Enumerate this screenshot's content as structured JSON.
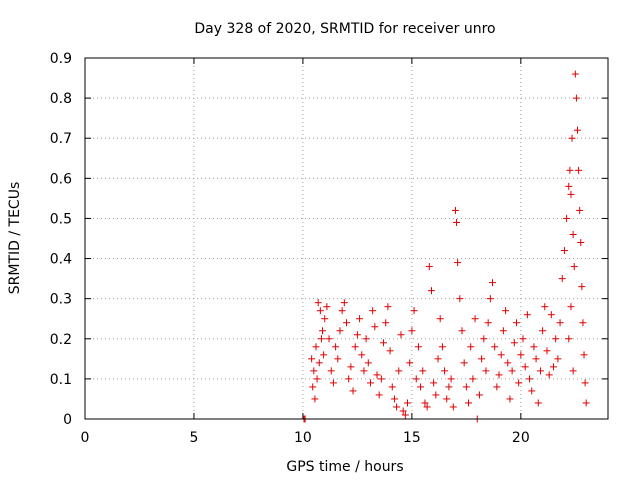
{
  "chart_data": {
    "type": "scatter",
    "title": "Day 328 of 2020, SRMTID for receiver unro",
    "xlabel": "GPS time / hours",
    "ylabel": "SRMTID / TECUs",
    "xlim": [
      0,
      24
    ],
    "ylim": [
      0,
      0.9
    ],
    "xticks": [
      0,
      5,
      10,
      15,
      20
    ],
    "yticks": [
      0,
      0.1,
      0.2,
      0.3,
      0.4,
      0.5,
      0.6,
      0.7,
      0.8,
      0.9
    ],
    "grid": true,
    "marker": "+",
    "color": "#e00000",
    "series": [
      {
        "name": "SRMTID",
        "points": [
          [
            10.05,
            0.0
          ],
          [
            10.1,
            0.0
          ],
          [
            18.0,
            0.0
          ],
          [
            10.4,
            0.15
          ],
          [
            10.5,
            0.12
          ],
          [
            10.6,
            0.18
          ],
          [
            10.7,
            0.29
          ],
          [
            10.8,
            0.27
          ],
          [
            10.9,
            0.22
          ],
          [
            10.45,
            0.08
          ],
          [
            10.55,
            0.05
          ],
          [
            10.65,
            0.1
          ],
          [
            10.75,
            0.14
          ],
          [
            10.85,
            0.2
          ],
          [
            10.95,
            0.16
          ],
          [
            11.0,
            0.25
          ],
          [
            11.1,
            0.28
          ],
          [
            11.2,
            0.2
          ],
          [
            11.3,
            0.12
          ],
          [
            11.4,
            0.09
          ],
          [
            11.5,
            0.18
          ],
          [
            11.6,
            0.15
          ],
          [
            11.7,
            0.22
          ],
          [
            11.8,
            0.27
          ],
          [
            11.9,
            0.29
          ],
          [
            12.0,
            0.24
          ],
          [
            12.1,
            0.1
          ],
          [
            12.2,
            0.13
          ],
          [
            12.3,
            0.07
          ],
          [
            12.4,
            0.18
          ],
          [
            12.5,
            0.21
          ],
          [
            12.6,
            0.25
          ],
          [
            12.7,
            0.16
          ],
          [
            12.8,
            0.12
          ],
          [
            12.9,
            0.2
          ],
          [
            13.0,
            0.14
          ],
          [
            13.1,
            0.09
          ],
          [
            13.2,
            0.27
          ],
          [
            13.3,
            0.23
          ],
          [
            13.4,
            0.11
          ],
          [
            13.5,
            0.06
          ],
          [
            13.6,
            0.1
          ],
          [
            13.7,
            0.19
          ],
          [
            13.8,
            0.24
          ],
          [
            13.9,
            0.28
          ],
          [
            14.0,
            0.17
          ],
          [
            14.1,
            0.08
          ],
          [
            14.2,
            0.05
          ],
          [
            14.3,
            0.03
          ],
          [
            14.4,
            0.12
          ],
          [
            14.5,
            0.21
          ],
          [
            14.6,
            0.02
          ],
          [
            14.7,
            0.01
          ],
          [
            14.8,
            0.04
          ],
          [
            14.9,
            0.14
          ],
          [
            15.0,
            0.22
          ],
          [
            15.1,
            0.27
          ],
          [
            15.2,
            0.1
          ],
          [
            15.3,
            0.18
          ],
          [
            15.4,
            0.08
          ],
          [
            15.5,
            0.12
          ],
          [
            15.6,
            0.04
          ],
          [
            15.7,
            0.03
          ],
          [
            15.8,
            0.38
          ],
          [
            15.9,
            0.32
          ],
          [
            16.0,
            0.09
          ],
          [
            16.1,
            0.06
          ],
          [
            16.2,
            0.15
          ],
          [
            16.3,
            0.25
          ],
          [
            16.4,
            0.18
          ],
          [
            16.5,
            0.12
          ],
          [
            16.6,
            0.05
          ],
          [
            16.7,
            0.08
          ],
          [
            16.8,
            0.1
          ],
          [
            16.9,
            0.03
          ],
          [
            17.0,
            0.52
          ],
          [
            17.05,
            0.49
          ],
          [
            17.1,
            0.39
          ],
          [
            17.2,
            0.3
          ],
          [
            17.3,
            0.22
          ],
          [
            17.4,
            0.14
          ],
          [
            17.5,
            0.08
          ],
          [
            17.6,
            0.04
          ],
          [
            17.7,
            0.18
          ],
          [
            17.8,
            0.1
          ],
          [
            17.9,
            0.25
          ],
          [
            18.1,
            0.06
          ],
          [
            18.2,
            0.15
          ],
          [
            18.3,
            0.2
          ],
          [
            18.4,
            0.12
          ],
          [
            18.5,
            0.24
          ],
          [
            18.6,
            0.3
          ],
          [
            18.7,
            0.34
          ],
          [
            18.8,
            0.18
          ],
          [
            18.9,
            0.08
          ],
          [
            19.0,
            0.11
          ],
          [
            19.1,
            0.16
          ],
          [
            19.2,
            0.22
          ],
          [
            19.3,
            0.27
          ],
          [
            19.4,
            0.14
          ],
          [
            19.5,
            0.05
          ],
          [
            19.6,
            0.12
          ],
          [
            19.7,
            0.19
          ],
          [
            19.8,
            0.24
          ],
          [
            19.9,
            0.09
          ],
          [
            20.0,
            0.16
          ],
          [
            20.1,
            0.2
          ],
          [
            20.2,
            0.13
          ],
          [
            20.3,
            0.26
          ],
          [
            20.4,
            0.1
          ],
          [
            20.5,
            0.07
          ],
          [
            20.6,
            0.18
          ],
          [
            20.7,
            0.15
          ],
          [
            20.8,
            0.04
          ],
          [
            20.9,
            0.12
          ],
          [
            21.0,
            0.22
          ],
          [
            21.1,
            0.28
          ],
          [
            21.2,
            0.17
          ],
          [
            21.3,
            0.11
          ],
          [
            21.4,
            0.26
          ],
          [
            21.5,
            0.13
          ],
          [
            21.6,
            0.2
          ],
          [
            21.7,
            0.15
          ],
          [
            21.8,
            0.24
          ],
          [
            21.9,
            0.35
          ],
          [
            22.0,
            0.42
          ],
          [
            22.1,
            0.5
          ],
          [
            22.2,
            0.58
          ],
          [
            22.25,
            0.62
          ],
          [
            22.3,
            0.56
          ],
          [
            22.35,
            0.7
          ],
          [
            22.4,
            0.46
          ],
          [
            22.45,
            0.38
          ],
          [
            22.5,
            0.86
          ],
          [
            22.55,
            0.8
          ],
          [
            22.6,
            0.72
          ],
          [
            22.65,
            0.62
          ],
          [
            22.7,
            0.52
          ],
          [
            22.75,
            0.44
          ],
          [
            22.8,
            0.33
          ],
          [
            22.85,
            0.24
          ],
          [
            22.9,
            0.16
          ],
          [
            22.95,
            0.09
          ],
          [
            23.0,
            0.04
          ],
          [
            22.2,
            0.2
          ],
          [
            22.3,
            0.28
          ],
          [
            22.4,
            0.12
          ]
        ]
      }
    ]
  }
}
